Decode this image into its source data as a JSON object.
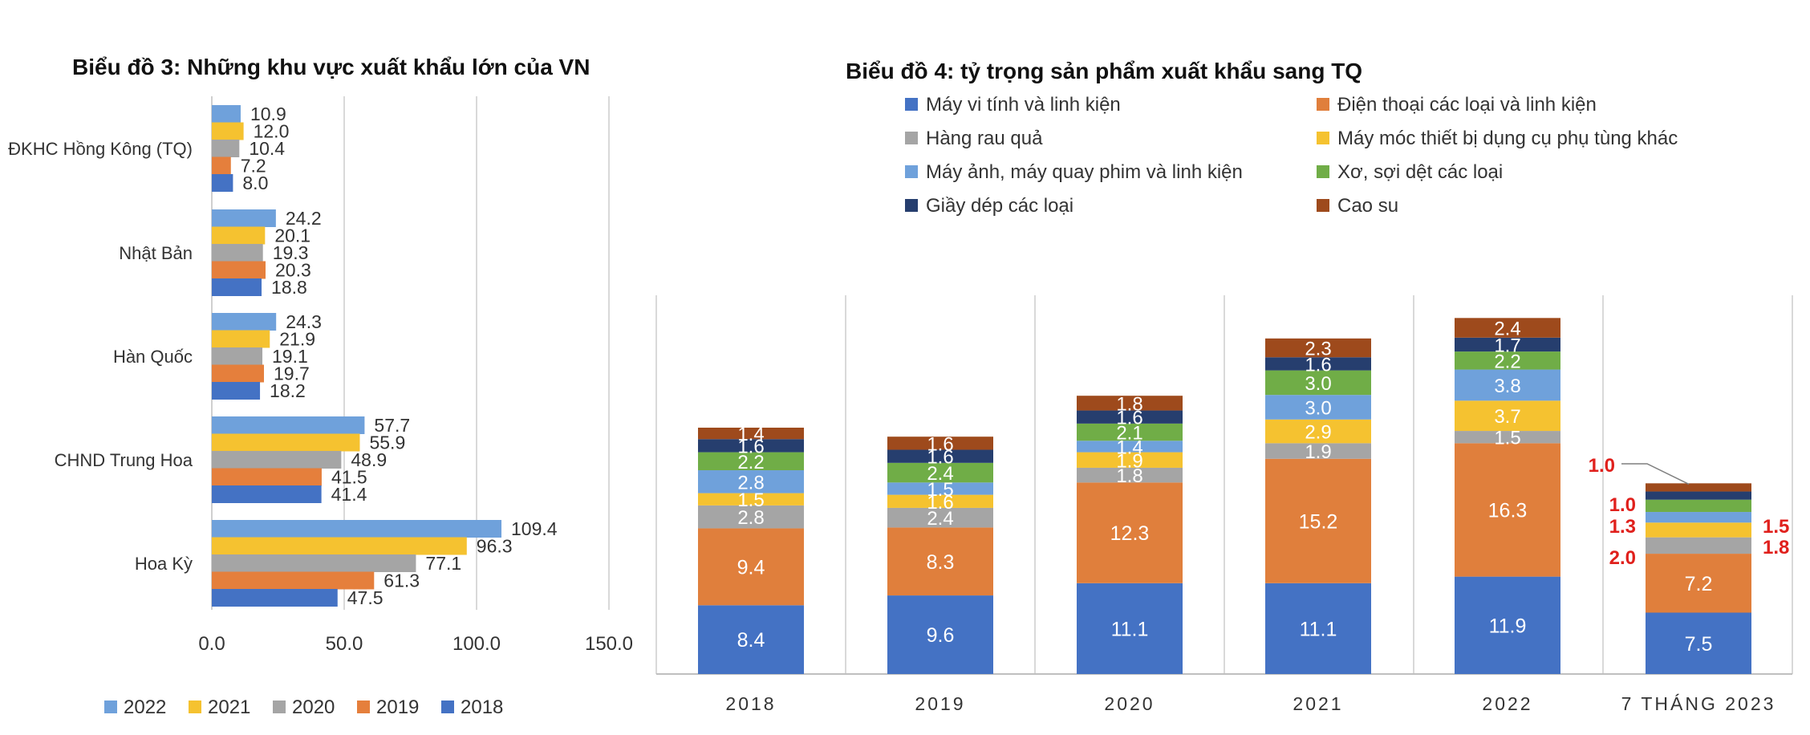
{
  "colors": {
    "c2022": "#6fa1db",
    "c2021": "#f5c230",
    "c2020": "#a5a5a5",
    "c2019": "#e57f3c",
    "c2018": "#4472c4",
    "seg_may_vi_tinh": "#4472c4",
    "seg_dien_thoai": "#e07f3c",
    "seg_rau_qua": "#a5a5a5",
    "seg_may_moc": "#f5c230",
    "seg_may_anh": "#6fa1db",
    "seg_xo_soi": "#70ad47",
    "seg_giay_dep": "#263e6e",
    "seg_cao_su": "#9e4a1c",
    "annotation_red": "#e0201c",
    "text_dark": "#333333",
    "grid": "#d9d9d9"
  },
  "chart_data": [
    {
      "id": "chart3",
      "type": "bar",
      "orientation": "horizontal",
      "title": "Biểu đồ 3: Những khu vực xuất khẩu lớn của VN",
      "categories": [
        "ĐKHC Hồng Kông (TQ)",
        "Nhật Bản",
        "Hàn Quốc",
        "CHND Trung Hoa",
        "Hoa Kỳ"
      ],
      "series": [
        {
          "name": "2022",
          "color_key": "c2022",
          "values": [
            10.9,
            24.2,
            24.3,
            57.7,
            109.4
          ],
          "labels": [
            "10.9",
            "24.2",
            "24.3",
            "57.7",
            "109.4"
          ]
        },
        {
          "name": "2021",
          "color_key": "c2021",
          "values": [
            12.0,
            20.1,
            21.9,
            55.9,
            96.3
          ],
          "labels": [
            "12.0",
            "20.1",
            "21.9",
            "55.9",
            "96.3"
          ]
        },
        {
          "name": "2020",
          "color_key": "c2020",
          "values": [
            10.4,
            19.3,
            19.1,
            48.9,
            77.1
          ],
          "labels": [
            "10.4",
            "19.3",
            "19.1",
            "48.9",
            "77.1"
          ]
        },
        {
          "name": "2019",
          "color_key": "c2019",
          "values": [
            7.2,
            20.3,
            19.7,
            41.5,
            61.3
          ],
          "labels": [
            "7.2",
            "20.3",
            "19.7",
            "41.5",
            "61.3"
          ]
        },
        {
          "name": "2018",
          "color_key": "c2018",
          "values": [
            8.0,
            18.8,
            18.2,
            41.4,
            47.5
          ],
          "labels": [
            "8.0",
            "18.8",
            "18.2",
            "41.4",
            "47.5"
          ]
        }
      ],
      "xlim": [
        0,
        150
      ],
      "xticks": [
        "0.0",
        "50.0",
        "100.0",
        "150.0"
      ],
      "xtick_values": [
        0,
        50,
        100,
        150
      ],
      "legend": [
        "2022",
        "2021",
        "2020",
        "2019",
        "2018"
      ],
      "legend_position": "bottom-left",
      "grid": true
    },
    {
      "id": "chart4",
      "type": "bar",
      "orientation": "vertical",
      "stacked": true,
      "title": "Biểu đồ 4:  tỷ trọng sản phẩm xuất khẩu sang TQ",
      "categories": [
        "2018",
        "2019",
        "2020",
        "2021",
        "2022",
        "7 THÁNG 2023"
      ],
      "series": [
        {
          "name": "Máy vi tính và linh kiện",
          "color_key": "seg_may_vi_tinh",
          "values": [
            8.4,
            9.6,
            11.1,
            11.1,
            11.9,
            7.5
          ],
          "labels": [
            "8.4",
            "9.6",
            "11.1",
            "11.1",
            "11.9",
            "7.5"
          ]
        },
        {
          "name": "Điện thoại các loại và linh kiện",
          "color_key": "seg_dien_thoai",
          "values": [
            9.4,
            8.3,
            12.3,
            15.2,
            16.3,
            7.2
          ],
          "labels": [
            "9.4",
            "8.3",
            "12.3",
            "15.2",
            "16.3",
            "7.2"
          ]
        },
        {
          "name": "Hàng rau quả",
          "color_key": "seg_rau_qua",
          "values": [
            2.8,
            2.4,
            1.8,
            1.9,
            1.5,
            2.0
          ],
          "labels": [
            "2.8",
            "2.4",
            "1.8",
            "1.9",
            "1.5",
            "2.0"
          ]
        },
        {
          "name": "Máy móc thiết bị dụng cụ phụ tùng khác",
          "color_key": "seg_may_moc",
          "values": [
            1.5,
            1.6,
            1.9,
            2.9,
            3.7,
            1.8
          ],
          "labels": [
            "1.5",
            "1.6",
            "1.9",
            "2.9",
            "3.7",
            "1.8"
          ]
        },
        {
          "name": "Máy ảnh, máy quay phim và linh kiện",
          "color_key": "seg_may_anh",
          "values": [
            2.8,
            1.5,
            1.4,
            3.0,
            3.8,
            1.3
          ],
          "labels": [
            "2.8",
            "1.5",
            "1.4",
            "3.0",
            "3.8",
            "1.3"
          ]
        },
        {
          "name": "Xơ, sợi dệt các loại",
          "color_key": "seg_xo_soi",
          "values": [
            2.2,
            2.4,
            2.1,
            3.0,
            2.2,
            1.5
          ],
          "labels": [
            "2.2",
            "2.4",
            "2.1",
            "3.0",
            "2.2",
            "1.5"
          ]
        },
        {
          "name": "Giầy dép các loại",
          "color_key": "seg_giay_dep",
          "values": [
            1.6,
            1.6,
            1.6,
            1.6,
            1.7,
            1.0
          ],
          "labels": [
            "1.6",
            "1.6",
            "1.6",
            "1.6",
            "1.7",
            "1.0"
          ]
        },
        {
          "name": "Cao su",
          "color_key": "seg_cao_su",
          "values": [
            1.4,
            1.6,
            1.8,
            2.3,
            2.4,
            1.0
          ],
          "labels": [
            "1.4",
            "1.6",
            "1.8",
            "2.3",
            "2.4",
            "1.0"
          ]
        }
      ],
      "legend": [
        "Máy vi tính và linh kiện",
        "Điện thoại các loại và linh kiện",
        "Hàng rau quả",
        "Máy móc thiết bị dụng cụ phụ tùng khác",
        "Máy ảnh, máy quay phim và linh kiện",
        "Xơ, sợi dệt các loại",
        "Giầy dép các loại",
        "Cao su"
      ],
      "legend_position": "top",
      "ylim": [
        0,
        45
      ],
      "grid": true
    }
  ]
}
